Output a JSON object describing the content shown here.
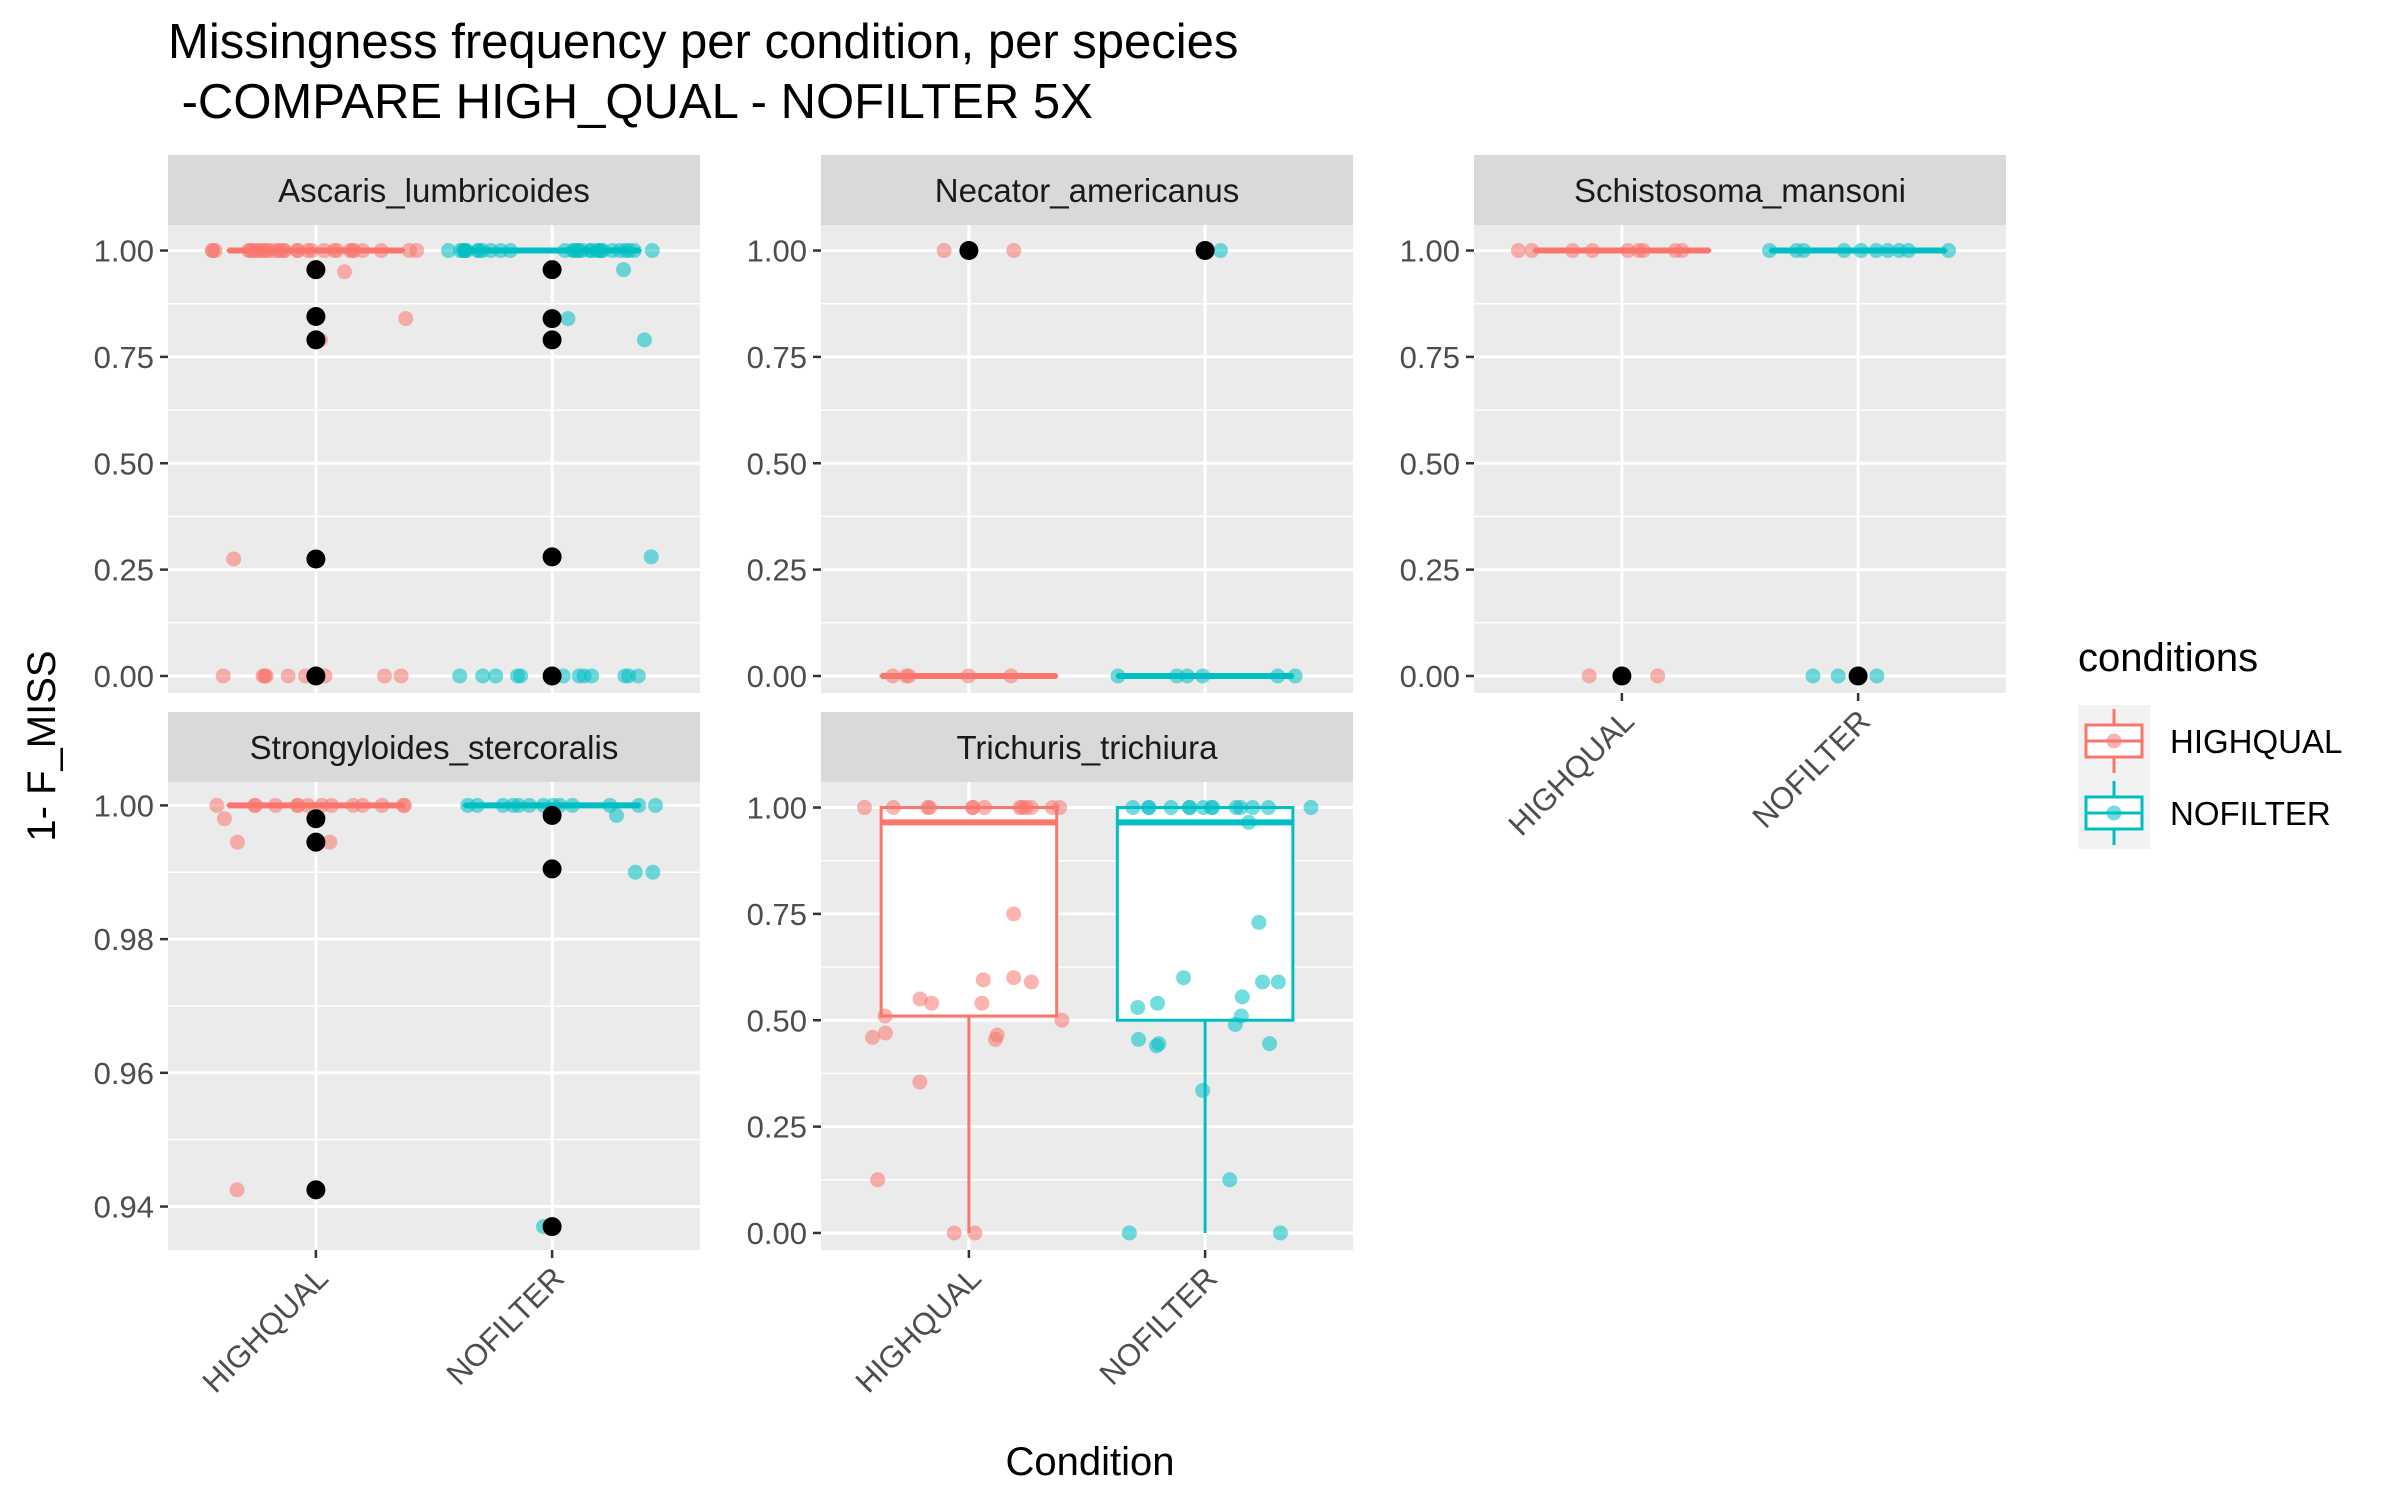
{
  "chart_data": {
    "type": "boxplot",
    "title": "Missingness frequency per condition, per species",
    "subtitle": " -COMPARE HIGH_QUAL - NOFILTER 5X",
    "xlabel": "Condition",
    "ylabel": "1- F_MISS",
    "categories": [
      "HIGHQUAL",
      "NOFILTER"
    ],
    "legend": {
      "title": "conditions",
      "position": "right",
      "entries": [
        {
          "name": "HIGHQUAL",
          "color": "#F8766D"
        },
        {
          "name": "NOFILTER",
          "color": "#00BFC4"
        }
      ]
    },
    "grid": true,
    "facets": [
      {
        "name": "Ascaris_lumbricoides",
        "ylim": [
          -0.04,
          1.06
        ],
        "yticks": [
          0,
          0.25,
          0.5,
          0.75,
          1
        ],
        "ytick_labels": [
          "0.00",
          "0.25",
          "0.50",
          "0.75",
          "1.00"
        ],
        "boxes": [
          {
            "condition": "HIGHQUAL",
            "q1": 1.0,
            "median": 1.0,
            "q3": 1.0,
            "whisker_low": 1.0,
            "whisker_high": 1.0,
            "outliers": [
              0.955,
              0.845,
              0.79,
              0.275,
              0.0
            ]
          },
          {
            "condition": "NOFILTER",
            "q1": 1.0,
            "median": 1.0,
            "q3": 1.0,
            "whisker_low": 1.0,
            "whisker_high": 1.0,
            "outliers": [
              0.955,
              0.84,
              0.79,
              0.28,
              0.0
            ]
          }
        ],
        "points": {
          "HIGHQUAL": [
            1,
            1,
            1,
            1,
            1,
            1,
            1,
            1,
            1,
            1,
            1,
            1,
            1,
            1,
            1,
            1,
            1,
            1,
            1,
            1,
            1,
            1,
            1,
            1,
            1,
            1,
            1,
            1,
            1,
            1,
            0.95,
            0.84,
            0.79,
            0.275,
            0,
            0,
            0,
            0,
            0,
            0,
            0,
            0,
            0,
            0
          ],
          "NOFILTER": [
            1,
            1,
            1,
            1,
            1,
            1,
            1,
            1,
            1,
            1,
            1,
            1,
            1,
            1,
            1,
            1,
            1,
            1,
            1,
            1,
            1,
            1,
            1,
            1,
            1,
            1,
            1,
            1,
            1,
            1,
            0.955,
            0.84,
            0.79,
            0.28,
            0,
            0,
            0,
            0,
            0,
            0,
            0,
            0,
            0,
            0,
            0,
            0
          ]
        }
      },
      {
        "name": "Necator_americanus",
        "ylim": [
          -0.04,
          1.06
        ],
        "yticks": [
          0,
          0.25,
          0.5,
          0.75,
          1
        ],
        "ytick_labels": [
          "0.00",
          "0.25",
          "0.50",
          "0.75",
          "1.00"
        ],
        "boxes": [
          {
            "condition": "HIGHQUAL",
            "q1": 0.0,
            "median": 0.0,
            "q3": 0.0,
            "whisker_low": 0.0,
            "whisker_high": 0.0,
            "outliers": [
              1.0
            ]
          },
          {
            "condition": "NOFILTER",
            "q1": 0.0,
            "median": 0.0,
            "q3": 0.0,
            "whisker_low": 0.0,
            "whisker_high": 0.0,
            "outliers": [
              1.0
            ]
          }
        ],
        "points": {
          "HIGHQUAL": [
            1,
            1,
            0,
            0,
            0,
            0,
            0
          ],
          "NOFILTER": [
            1,
            0,
            0,
            0,
            0,
            0,
            0
          ]
        }
      },
      {
        "name": "Schistosoma_mansoni",
        "ylim": [
          -0.04,
          1.06
        ],
        "yticks": [
          0,
          0.25,
          0.5,
          0.75,
          1
        ],
        "ytick_labels": [
          "0.00",
          "0.25",
          "0.50",
          "0.75",
          "1.00"
        ],
        "boxes": [
          {
            "condition": "HIGHQUAL",
            "q1": 1.0,
            "median": 1.0,
            "q3": 1.0,
            "whisker_low": 1.0,
            "whisker_high": 1.0,
            "outliers": [
              0.0
            ]
          },
          {
            "condition": "NOFILTER",
            "q1": 1.0,
            "median": 1.0,
            "q3": 1.0,
            "whisker_low": 1.0,
            "whisker_high": 1.0,
            "outliers": [
              0.0
            ]
          }
        ],
        "points": {
          "HIGHQUAL": [
            1,
            1,
            1,
            1,
            1,
            1,
            1,
            1,
            1,
            0,
            0
          ],
          "NOFILTER": [
            1,
            1,
            1,
            1,
            1,
            1,
            1,
            1,
            1,
            1,
            0,
            0,
            0
          ]
        }
      },
      {
        "name": "Strongyloides_stercoralis",
        "ylim": [
          0.9335,
          1.0035
        ],
        "yticks": [
          0.94,
          0.96,
          0.98,
          1.0
        ],
        "ytick_labels": [
          "0.94",
          "0.96",
          "0.98",
          "1.00"
        ],
        "boxes": [
          {
            "condition": "HIGHQUAL",
            "q1": 1.0,
            "median": 1.0,
            "q3": 1.0,
            "whisker_low": 1.0,
            "whisker_high": 1.0,
            "outliers": [
              0.998,
              0.9945,
              0.9425
            ]
          },
          {
            "condition": "NOFILTER",
            "q1": 1.0,
            "median": 1.0,
            "q3": 1.0,
            "whisker_low": 1.0,
            "whisker_high": 1.0,
            "outliers": [
              0.9985,
              0.9905,
              0.937
            ]
          }
        ],
        "points": {
          "HIGHQUAL": [
            1,
            1,
            1,
            1,
            1,
            1,
            1,
            1,
            1,
            1,
            1,
            1,
            1,
            1,
            0.998,
            0.9945,
            0.9945,
            0.9425
          ],
          "NOFILTER": [
            1,
            1,
            1,
            1,
            1,
            1,
            1,
            1,
            1,
            1,
            1,
            1,
            1,
            0.9985,
            0.99,
            0.99,
            0.937
          ]
        }
      },
      {
        "name": "Trichuris_trichiura",
        "ylim": [
          -0.04,
          1.06
        ],
        "yticks": [
          0,
          0.25,
          0.5,
          0.75,
          1
        ],
        "ytick_labels": [
          "0.00",
          "0.25",
          "0.50",
          "0.75",
          "1.00"
        ],
        "boxes": [
          {
            "condition": "HIGHQUAL",
            "q1": 0.51,
            "median": 0.965,
            "q3": 1.0,
            "whisker_low": 0.0,
            "whisker_high": 1.0,
            "outliers": []
          },
          {
            "condition": "NOFILTER",
            "q1": 0.5,
            "median": 0.965,
            "q3": 1.0,
            "whisker_low": 0.0,
            "whisker_high": 1.0,
            "outliers": []
          }
        ],
        "points": {
          "HIGHQUAL": [
            1,
            1,
            1,
            1,
            1,
            1,
            1,
            1,
            1,
            1,
            1,
            1,
            1,
            0.75,
            0.6,
            0.59,
            0.595,
            0.55,
            0.54,
            0.54,
            0.51,
            0.5,
            0.47,
            0.465,
            0.46,
            0.455,
            0.355,
            0.125,
            0,
            0
          ],
          "NOFILTER": [
            1,
            1,
            1,
            1,
            1,
            1,
            1,
            1,
            1,
            1,
            1,
            1,
            1,
            1,
            0.965,
            0.73,
            0.6,
            0.59,
            0.59,
            0.555,
            0.54,
            0.53,
            0.51,
            0.49,
            0.455,
            0.445,
            0.445,
            0.44,
            0.335,
            0.125,
            0,
            0
          ]
        }
      }
    ]
  }
}
